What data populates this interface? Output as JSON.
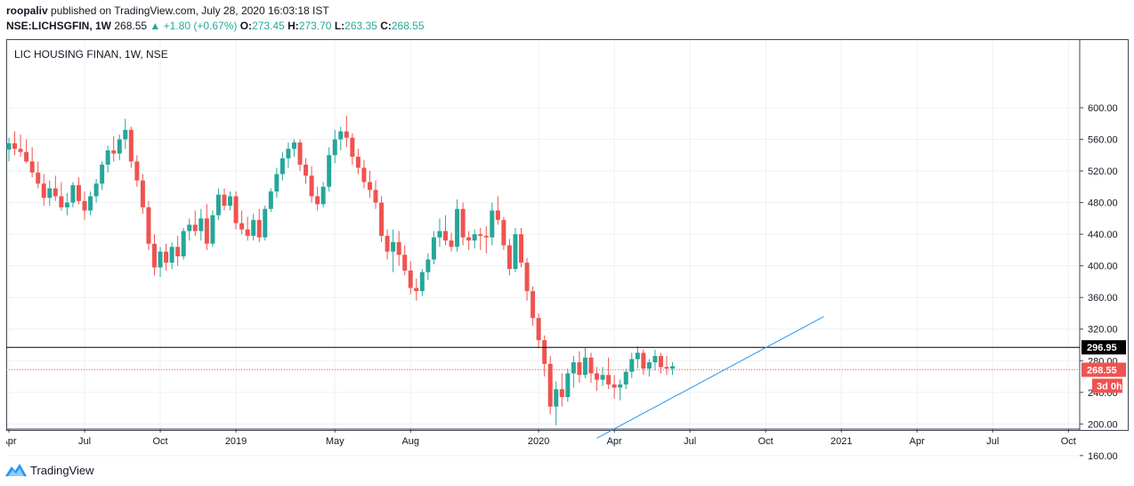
{
  "header": {
    "author": "roopaliv",
    "publish_text": "published on TradingView.com, July 28, 2020 16:03:18 IST",
    "symbol_line": "NSE:LICHSGFIN, 1W",
    "last": "268.55",
    "change_arrow": "▲",
    "change": "+1.80 (+0.67%)",
    "o_label": "O:",
    "o_val": "273.45",
    "h_label": "H:",
    "h_val": "273.70",
    "l_label": "L:",
    "l_val": "263.35",
    "c_label": "C:",
    "c_val": "268.55"
  },
  "footer": {
    "brand": "TradingView",
    "logo_icon": "tradingview-logo-icon"
  },
  "colors": {
    "up": "#26a69a",
    "down": "#ef5350",
    "trendline": "#2196f3",
    "hline": "#000000",
    "price_line": "#ef5350"
  },
  "chart_data": {
    "type": "candlestick",
    "title": "LIC HOUSING FINAN, 1W, NSE",
    "y_ticks": [
      600,
      560,
      520,
      480,
      440,
      400,
      360,
      320,
      280,
      240,
      200,
      160
    ],
    "ylim": [
      145,
      610
    ],
    "x_ticks": [
      "Apr",
      "Jul",
      "Oct",
      "2019",
      "May",
      "Aug",
      "2020",
      "Apr",
      "Jul",
      "Oct",
      "2021",
      "Apr",
      "Jul",
      "Oct"
    ],
    "x_ticks_week_index": [
      0,
      13,
      26,
      39,
      56,
      69,
      91,
      104,
      117,
      130,
      143,
      156,
      169,
      182
    ],
    "grid": true,
    "horizontal_level": 296.95,
    "last_price": 268.55,
    "countdown_label": "3d 0h",
    "trendline": {
      "start": {
        "week": 101,
        "price": 182
      },
      "end": {
        "week": 140,
        "price": 336
      }
    },
    "candles": [
      [
        547,
        562,
        532,
        555
      ],
      [
        555,
        570,
        540,
        548
      ],
      [
        548,
        566,
        538,
        544
      ],
      [
        544,
        560,
        530,
        532
      ],
      [
        532,
        550,
        512,
        518
      ],
      [
        518,
        532,
        498,
        504
      ],
      [
        504,
        516,
        476,
        486
      ],
      [
        486,
        508,
        476,
        498
      ],
      [
        498,
        514,
        482,
        488
      ],
      [
        488,
        506,
        470,
        474
      ],
      [
        474,
        492,
        464,
        480
      ],
      [
        480,
        506,
        474,
        502
      ],
      [
        502,
        512,
        478,
        482
      ],
      [
        482,
        494,
        458,
        470
      ],
      [
        470,
        494,
        464,
        488
      ],
      [
        488,
        510,
        480,
        504
      ],
      [
        504,
        532,
        496,
        528
      ],
      [
        528,
        552,
        518,
        546
      ],
      [
        546,
        564,
        532,
        542
      ],
      [
        542,
        566,
        534,
        560
      ],
      [
        560,
        586,
        548,
        572
      ],
      [
        572,
        576,
        524,
        532
      ],
      [
        532,
        540,
        500,
        508
      ],
      [
        508,
        516,
        466,
        474
      ],
      [
        474,
        482,
        420,
        428
      ],
      [
        428,
        440,
        388,
        398
      ],
      [
        398,
        424,
        386,
        418
      ],
      [
        418,
        428,
        394,
        404
      ],
      [
        404,
        430,
        396,
        424
      ],
      [
        424,
        438,
        400,
        412
      ],
      [
        412,
        448,
        408,
        444
      ],
      [
        444,
        460,
        432,
        452
      ],
      [
        452,
        470,
        438,
        444
      ],
      [
        444,
        472,
        432,
        460
      ],
      [
        460,
        478,
        420,
        428
      ],
      [
        428,
        470,
        424,
        464
      ],
      [
        464,
        498,
        458,
        490
      ],
      [
        490,
        498,
        470,
        476
      ],
      [
        476,
        494,
        470,
        488
      ],
      [
        488,
        494,
        446,
        454
      ],
      [
        454,
        470,
        440,
        446
      ],
      [
        446,
        462,
        432,
        438
      ],
      [
        438,
        466,
        432,
        458
      ],
      [
        458,
        472,
        430,
        436
      ],
      [
        436,
        476,
        432,
        472
      ],
      [
        472,
        498,
        468,
        494
      ],
      [
        494,
        524,
        486,
        516
      ],
      [
        516,
        544,
        508,
        536
      ],
      [
        536,
        556,
        524,
        548
      ],
      [
        548,
        560,
        538,
        556
      ],
      [
        556,
        560,
        520,
        528
      ],
      [
        528,
        536,
        504,
        514
      ],
      [
        514,
        526,
        480,
        488
      ],
      [
        488,
        500,
        470,
        478
      ],
      [
        478,
        506,
        474,
        500
      ],
      [
        500,
        550,
        494,
        540
      ],
      [
        540,
        572,
        530,
        560
      ],
      [
        560,
        576,
        546,
        570
      ],
      [
        570,
        590,
        550,
        562
      ],
      [
        562,
        568,
        528,
        538
      ],
      [
        538,
        548,
        516,
        524
      ],
      [
        524,
        534,
        498,
        506
      ],
      [
        506,
        520,
        486,
        496
      ],
      [
        496,
        508,
        472,
        480
      ],
      [
        480,
        488,
        430,
        438
      ],
      [
        438,
        446,
        408,
        418
      ],
      [
        418,
        446,
        392,
        430
      ],
      [
        430,
        444,
        400,
        414
      ],
      [
        414,
        426,
        388,
        394
      ],
      [
        394,
        406,
        364,
        372
      ],
      [
        372,
        384,
        356,
        368
      ],
      [
        368,
        396,
        362,
        392
      ],
      [
        392,
        416,
        382,
        408
      ],
      [
        408,
        444,
        402,
        436
      ],
      [
        436,
        460,
        424,
        444
      ],
      [
        444,
        464,
        426,
        432
      ],
      [
        432,
        442,
        418,
        424
      ],
      [
        424,
        484,
        418,
        472
      ],
      [
        472,
        480,
        426,
        436
      ],
      [
        436,
        444,
        420,
        432
      ],
      [
        432,
        446,
        422,
        440
      ],
      [
        440,
        448,
        420,
        438
      ],
      [
        438,
        450,
        416,
        436
      ],
      [
        436,
        480,
        426,
        470
      ],
      [
        470,
        488,
        452,
        458
      ],
      [
        458,
        462,
        420,
        426
      ],
      [
        426,
        434,
        388,
        396
      ],
      [
        396,
        448,
        392,
        440
      ],
      [
        440,
        448,
        398,
        404
      ],
      [
        404,
        410,
        356,
        368
      ],
      [
        368,
        374,
        324,
        334
      ],
      [
        334,
        340,
        296,
        306
      ],
      [
        306,
        312,
        260,
        276
      ],
      [
        276,
        286,
        212,
        222
      ],
      [
        222,
        254,
        198,
        244
      ],
      [
        244,
        264,
        222,
        234
      ],
      [
        234,
        270,
        228,
        264
      ],
      [
        264,
        286,
        246,
        278
      ],
      [
        278,
        292,
        252,
        262
      ],
      [
        262,
        296,
        258,
        284
      ],
      [
        284,
        290,
        252,
        264
      ],
      [
        264,
        272,
        242,
        256
      ],
      [
        256,
        272,
        248,
        262
      ],
      [
        262,
        284,
        244,
        250
      ],
      [
        250,
        262,
        232,
        246
      ],
      [
        246,
        256,
        230,
        250
      ],
      [
        250,
        270,
        244,
        266
      ],
      [
        266,
        290,
        258,
        282
      ],
      [
        282,
        298,
        270,
        290
      ],
      [
        290,
        294,
        262,
        270
      ],
      [
        270,
        282,
        260,
        278
      ],
      [
        278,
        294,
        268,
        286
      ],
      [
        286,
        290,
        264,
        272
      ],
      [
        272,
        286,
        262,
        270
      ],
      [
        270,
        278,
        262,
        273
      ]
    ]
  }
}
